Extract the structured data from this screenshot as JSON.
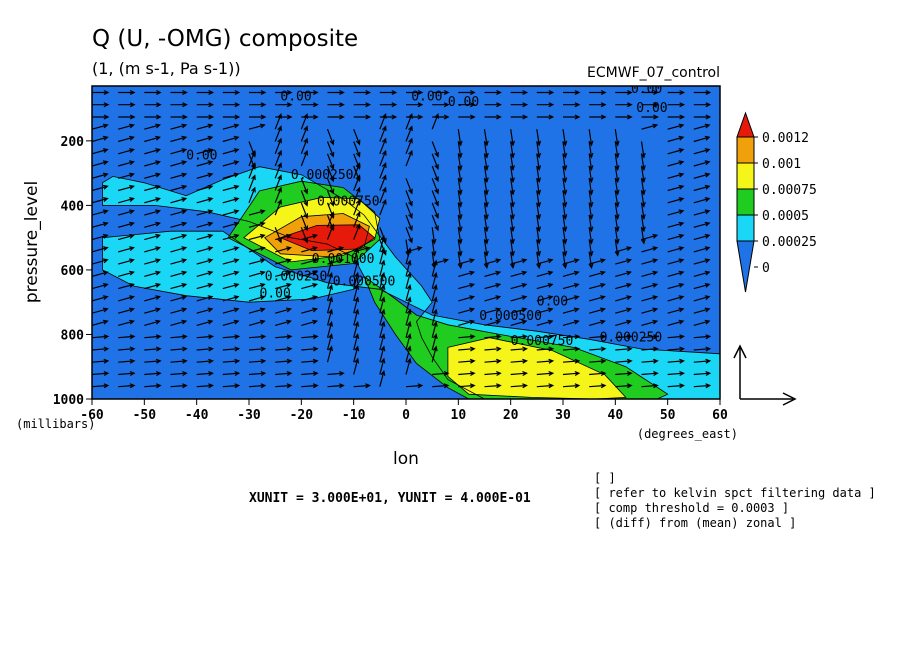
{
  "figure": {
    "title": "Q (U, -OMG) composite",
    "subtitle": "(1, (m s-1, Pa s-1))",
    "dataset": "ECMWF_07_control",
    "unit_note": "XUNIT = 3.000E+01, YUNIT = 4.000E-01",
    "notes": [
      "[  ]",
      "[ refer to kelvin spct filtering data ]",
      "[ comp threshold = 0.0003 ]",
      "[ (diff) from (mean) zonal ]"
    ]
  },
  "chart_data": {
    "type": "heatmap",
    "title": "Q (U, -OMG) composite",
    "subtitle": "(1, (m s-1, Pa s-1))",
    "xlabel": "lon",
    "xunits": "(degrees_east)",
    "ylabel": "pressure_level",
    "yunits": "(millibars)",
    "xlim": [
      -60,
      60
    ],
    "ylim": [
      1000,
      30
    ],
    "x_ticks": [
      -60,
      -50,
      -40,
      -30,
      -20,
      -10,
      0,
      10,
      20,
      30,
      40,
      50,
      60
    ],
    "x_tick_labels": [
      "-60",
      "-50",
      "-40",
      "-30",
      "-20",
      "-10",
      "0",
      "10",
      "20",
      "30",
      "40",
      "50",
      "60"
    ],
    "y_ticks": [
      1000,
      800,
      600,
      400,
      200
    ],
    "y_tick_labels": [
      "1000",
      "800",
      "600",
      "400",
      "200"
    ],
    "colorbar": {
      "levels": [
        0,
        0.00025,
        0.0005,
        0.00075,
        0.001,
        0.0012
      ],
      "labels": [
        "0",
        "0.00025",
        "0.0005",
        "0.00075",
        "0.001",
        "0.0012"
      ],
      "colors": [
        "#1f73e6",
        "#19d7f5",
        "#1fcc1f",
        "#f5f51a",
        "#f0a00a",
        "#e61a0a"
      ]
    },
    "filled_regions": [
      {
        "level": 0.00025,
        "lon": [
          -58,
          -45,
          -35,
          -25,
          -15,
          -5,
          5,
          15,
          25,
          35,
          45,
          55,
          60,
          60,
          48,
          30,
          15,
          8,
          5,
          3,
          2,
          5,
          3,
          -2,
          -8,
          -12,
          -20,
          -28,
          -35,
          -42,
          -50,
          -56,
          -58,
          -58,
          -48,
          -38,
          -30,
          -22,
          -15,
          -10,
          -8,
          -10,
          -18,
          -30,
          -42,
          -52,
          -58
        ],
        "p": [
          500,
          480,
          480,
          590,
          640,
          660,
          740,
          770,
          790,
          815,
          845,
          855,
          860,
          1000,
          1000,
          1000,
          1000,
          940,
          870,
          810,
          760,
          700,
          650,
          560,
          430,
          380,
          305,
          280,
          320,
          370,
          330,
          310,
          330,
          400,
          400,
          420,
          450,
          500,
          520,
          560,
          620,
          660,
          690,
          700,
          680,
          650,
          600
        ]
      },
      {
        "level": 0.0005,
        "lon": [
          -34,
          -28,
          -20,
          -12,
          -6,
          -5,
          -10,
          -22,
          -34
        ],
        "p": [
          500,
          355,
          325,
          345,
          420,
          505,
          580,
          600,
          500
        ]
      },
      {
        "level": 0.0005,
        "lon": [
          -8,
          -2,
          2,
          8,
          18,
          32,
          42,
          50,
          48,
          40,
          28,
          18,
          12,
          8,
          2,
          -2,
          -6
        ],
        "p": [
          620,
          690,
          740,
          770,
          800,
          840,
          900,
          985,
          1000,
          1000,
          1000,
          1000,
          1000,
          965,
          890,
          800,
          700
        ]
      },
      {
        "level": 0.00075,
        "lon": [
          -31,
          -24,
          -16,
          -9,
          -5,
          -6,
          -12,
          -22,
          -31
        ],
        "p": [
          500,
          405,
          375,
          380,
          440,
          505,
          555,
          575,
          500
        ]
      },
      {
        "level": 0.00075,
        "lon": [
          8,
          16,
          28,
          38,
          42,
          36,
          24,
          12,
          8
        ],
        "p": [
          840,
          810,
          850,
          925,
          995,
          1000,
          995,
          985,
          930
        ]
      },
      {
        "level": 0.001,
        "lon": [
          -27,
          -20,
          -12,
          -7,
          -8,
          -14,
          -24,
          -27
        ],
        "p": [
          500,
          435,
          425,
          465,
          530,
          560,
          550,
          500
        ]
      },
      {
        "level": 0.0012,
        "lon": [
          -24,
          -17,
          -9,
          -6,
          -9,
          -18,
          -24
        ],
        "p": [
          500,
          462,
          460,
          500,
          535,
          540,
          500
        ]
      }
    ],
    "contour_labels": [
      {
        "text": "0.00",
        "lon": -24,
        "p": 75
      },
      {
        "text": "0.00",
        "lon": 1,
        "p": 75
      },
      {
        "text": "0.00",
        "lon": 8,
        "p": 92
      },
      {
        "text": "0.00",
        "lon": 43,
        "p": 52
      },
      {
        "text": "0.00",
        "lon": 44,
        "p": 110
      },
      {
        "text": "0.00",
        "lon": -42,
        "p": 258
      },
      {
        "text": "0.000250",
        "lon": -22,
        "p": 318
      },
      {
        "text": "0.000750",
        "lon": -17,
        "p": 400
      },
      {
        "text": "0.001000",
        "lon": -18,
        "p": 578
      },
      {
        "text": "0.000250",
        "lon": -27,
        "p": 632
      },
      {
        "text": "0.000500",
        "lon": -14,
        "p": 648
      },
      {
        "text": "0.00",
        "lon": -28,
        "p": 685
      },
      {
        "text": "0.00",
        "lon": 25,
        "p": 710
      },
      {
        "text": "0.000500",
        "lon": 14,
        "p": 755
      },
      {
        "text": "0.000750",
        "lon": 20,
        "p": 832
      },
      {
        "text": "0.000250",
        "lon": 37,
        "p": 822
      }
    ],
    "vector_reference": {
      "x": "XUNIT = 3.000E+01",
      "y": "YUNIT = 4.000E-01"
    }
  }
}
